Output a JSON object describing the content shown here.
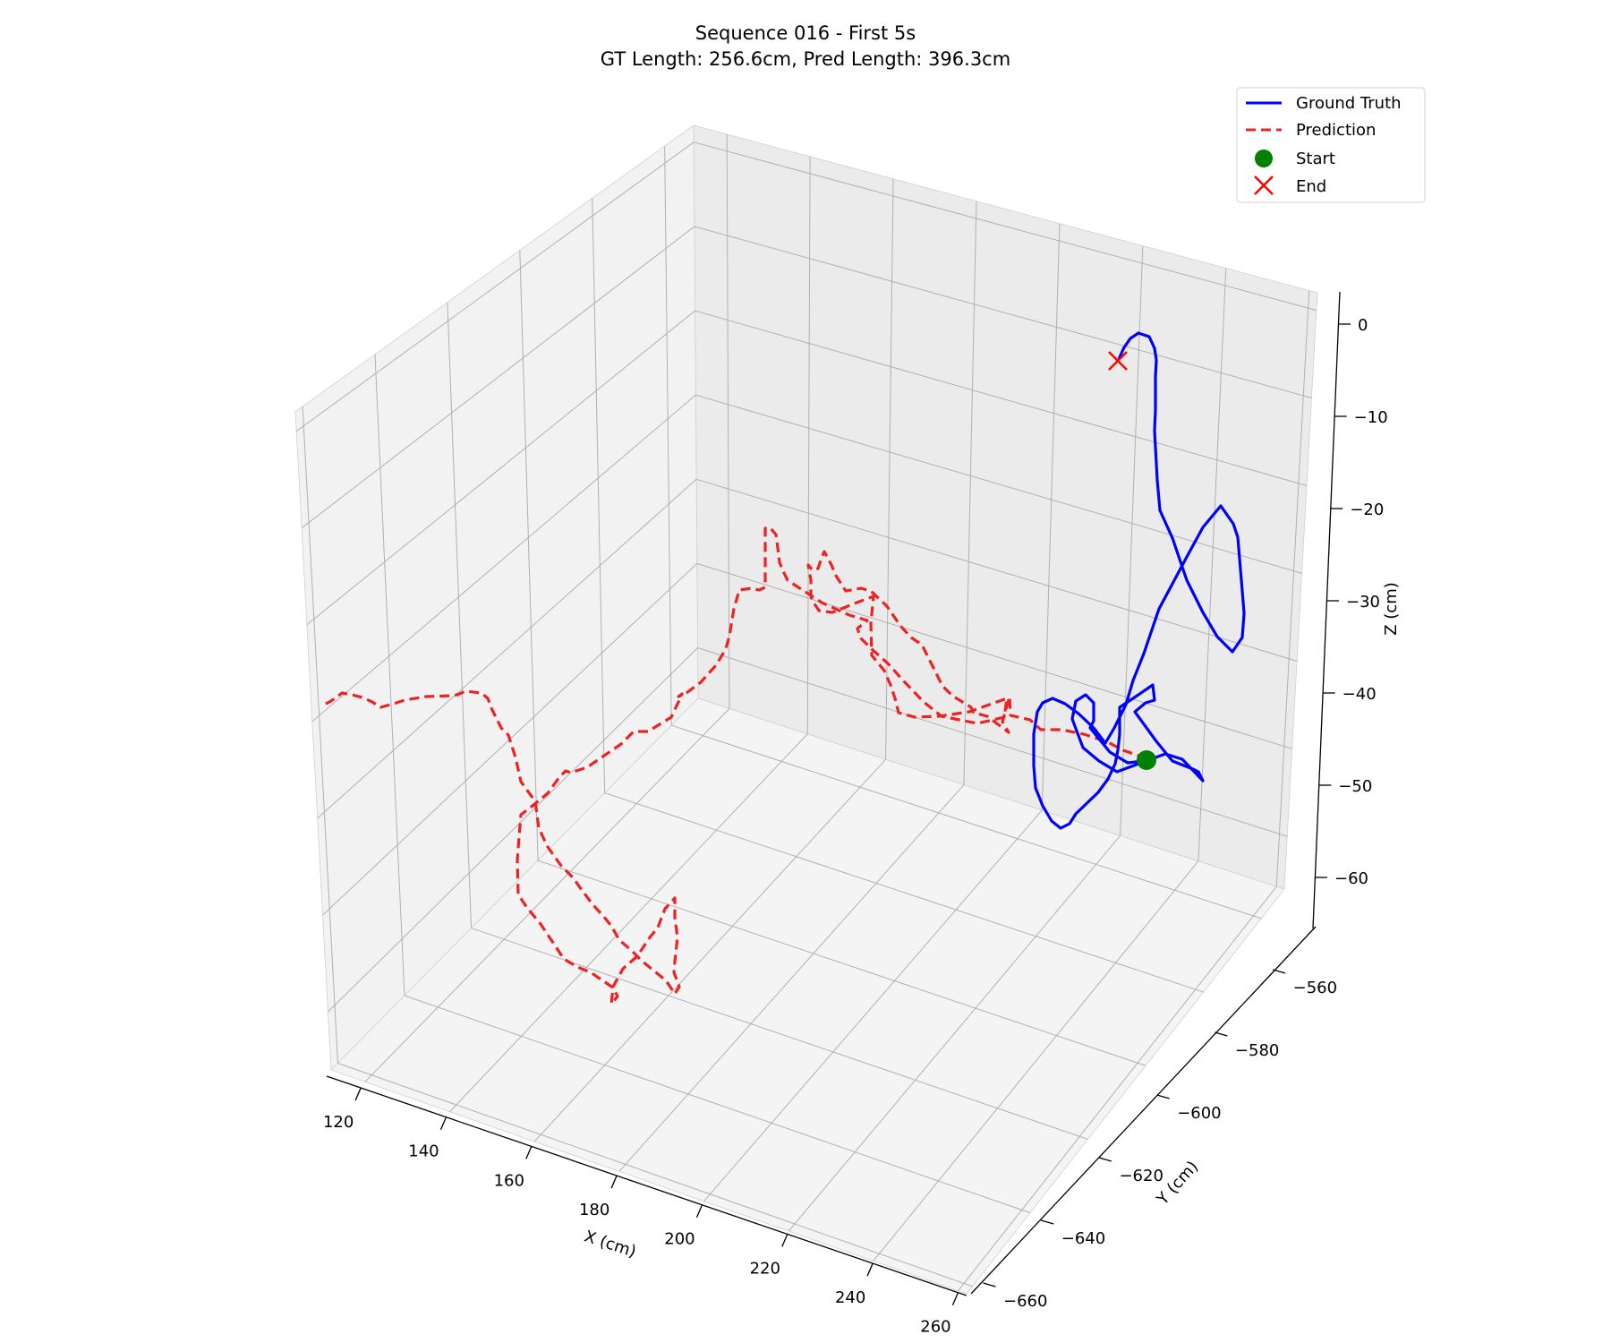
{
  "chart_data": {
    "type": "line",
    "projection": "3d",
    "title": "Sequence 016 - First 5s",
    "subtitle": "GT Length: 256.6cm, Pred Length: 396.3cm",
    "xlabel": "X (cm)",
    "ylabel": "Y (cm)",
    "zlabel": "Z (cm)",
    "xlim": [
      112,
      262
    ],
    "ylim": [
      -662,
      -552
    ],
    "zlim": [
      -66,
      2
    ],
    "x_ticks": [
      120,
      140,
      160,
      180,
      200,
      220,
      240,
      260
    ],
    "y_ticks": [
      -560,
      -580,
      -600,
      -620,
      -640,
      -660
    ],
    "z_ticks": [
      0,
      -10,
      -20,
      -30,
      -40,
      -50,
      -60
    ],
    "grid": true,
    "legend_position": "top-right",
    "series": [
      {
        "name": "Ground Truth",
        "style": "solid",
        "color": "#0000ff",
        "marks_2d": [
          [
            1277,
            850
          ],
          [
            1260,
            852
          ],
          [
            1240,
            840
          ],
          [
            1218,
            813
          ],
          [
            1222,
            805
          ],
          [
            1222,
            785
          ],
          [
            1213,
            776
          ],
          [
            1202,
            783
          ],
          [
            1198,
            803
          ],
          [
            1210,
            835
          ],
          [
            1228,
            850
          ],
          [
            1248,
            862
          ],
          [
            1302,
            842
          ],
          [
            1321,
            848
          ],
          [
            1344,
            872
          ],
          [
            1339,
            862
          ],
          [
            1333,
            859
          ],
          [
            1310,
            850
          ],
          [
            1292,
            828
          ],
          [
            1268,
            795
          ],
          [
            1280,
            785
          ],
          [
            1290,
            782
          ],
          [
            1288,
            765
          ],
          [
            1266,
            780
          ],
          [
            1251,
            790
          ],
          [
            1251,
            820
          ],
          [
            1249,
            838
          ],
          [
            1246,
            853
          ],
          [
            1238,
            870
          ],
          [
            1227,
            885
          ],
          [
            1202,
            909
          ],
          [
            1195,
            920
          ],
          [
            1185,
            925
          ],
          [
            1175,
            917
          ],
          [
            1165,
            900
          ],
          [
            1157,
            880
          ],
          [
            1155,
            855
          ],
          [
            1155,
            820
          ],
          [
            1159,
            795
          ],
          [
            1165,
            785
          ],
          [
            1176,
            780
          ],
          [
            1190,
            786
          ],
          [
            1205,
            797
          ],
          [
            1222,
            813
          ],
          [
            1235,
            830
          ],
          [
            1245,
            813
          ],
          [
            1258,
            787
          ],
          [
            1266,
            760
          ],
          [
            1278,
            730
          ],
          [
            1295,
            680
          ],
          [
            1310,
            652
          ],
          [
            1326,
            622
          ],
          [
            1344,
            589
          ],
          [
            1364,
            565
          ],
          [
            1378,
            585
          ],
          [
            1383,
            600
          ],
          [
            1388,
            660
          ],
          [
            1390,
            685
          ],
          [
            1388,
            712
          ],
          [
            1377,
            728
          ],
          [
            1360,
            711
          ],
          [
            1344,
            684
          ],
          [
            1326,
            648
          ],
          [
            1310,
            601
          ],
          [
            1296,
            570
          ],
          [
            1293,
            536
          ],
          [
            1290,
            481
          ],
          [
            1291,
            458
          ],
          [
            1291,
            421
          ],
          [
            1292,
            402
          ],
          [
            1290,
            389
          ],
          [
            1284,
            376
          ],
          [
            1272,
            372
          ],
          [
            1263,
            378
          ],
          [
            1256,
            388
          ],
          [
            1250,
            401
          ]
        ]
      },
      {
        "name": "Prediction",
        "style": "dashed",
        "color": "#ee2222",
        "marks_2d": [
          [
            1281,
            847
          ],
          [
            1255,
            838
          ],
          [
            1238,
            829
          ],
          [
            1211,
            820
          ],
          [
            1186,
            815
          ],
          [
            1163,
            815
          ],
          [
            1151,
            804
          ],
          [
            1129,
            799
          ],
          [
            1128,
            778
          ],
          [
            1120,
            806
          ],
          [
            1127,
            818
          ],
          [
            1103,
            800
          ],
          [
            1088,
            796
          ],
          [
            1085,
            790
          ],
          [
            1064,
            777
          ],
          [
            1053,
            766
          ],
          [
            1040,
            740
          ],
          [
            1030,
            720
          ],
          [
            1018,
            712
          ],
          [
            1006,
            699
          ],
          [
            991,
            677
          ],
          [
            973,
            660
          ],
          [
            962,
            657
          ],
          [
            945,
            660
          ],
          [
            934,
            643
          ],
          [
            929,
            631
          ],
          [
            921,
            616
          ],
          [
            918,
            623
          ],
          [
            914,
            635
          ],
          [
            908,
            637
          ],
          [
            903,
            631
          ],
          [
            906,
            648
          ],
          [
            906,
            664
          ],
          [
            907,
            670
          ],
          [
            915,
            682
          ],
          [
            930,
            684
          ],
          [
            960,
            672
          ],
          [
            976,
            666
          ],
          [
            973,
            696
          ],
          [
            974,
            732
          ],
          [
            988,
            749
          ],
          [
            995,
            765
          ],
          [
            1000,
            780
          ],
          [
            1004,
            796
          ],
          [
            1022,
            801
          ],
          [
            1049,
            800
          ],
          [
            1083,
            795
          ],
          [
            1125,
            780
          ],
          [
            1122,
            801
          ],
          [
            1092,
            808
          ],
          [
            1052,
            800
          ],
          [
            1032,
            784
          ],
          [
            1010,
            761
          ],
          [
            992,
            741
          ],
          [
            974,
            725
          ],
          [
            962,
            713
          ],
          [
            958,
            702
          ],
          [
            969,
            693
          ],
          [
            949,
            687
          ],
          [
            918,
            673
          ],
          [
            903,
            663
          ],
          [
            892,
            656
          ],
          [
            880,
            648
          ],
          [
            875,
            638
          ],
          [
            871,
            628
          ],
          [
            869,
            612
          ],
          [
            867,
            597
          ],
          [
            860,
            589
          ],
          [
            855,
            590
          ],
          [
            855,
            627
          ],
          [
            855,
            656
          ],
          [
            848,
            659
          ],
          [
            840,
            657
          ],
          [
            826,
            659
          ],
          [
            820,
            680
          ],
          [
            815,
            710
          ],
          [
            812,
            721
          ],
          [
            809,
            728
          ],
          [
            800,
            743
          ],
          [
            783,
            762
          ],
          [
            767,
            774
          ],
          [
            758,
            778
          ],
          [
            762,
            775
          ],
          [
            760,
            780
          ],
          [
            750,
            801
          ],
          [
            724,
            817
          ],
          [
            708,
            817
          ],
          [
            694,
            831
          ],
          [
            656,
            857
          ],
          [
            638,
            863
          ],
          [
            632,
            861
          ],
          [
            625,
            868
          ],
          [
            612,
            886
          ],
          [
            595,
            900
          ],
          [
            582,
            910
          ],
          [
            580,
            934
          ],
          [
            578,
            961
          ],
          [
            579,
            999
          ],
          [
            589,
            1014
          ],
          [
            604,
            1032
          ],
          [
            616,
            1050
          ],
          [
            630,
            1071
          ],
          [
            645,
            1080
          ],
          [
            660,
            1086
          ],
          [
            673,
            1095
          ],
          [
            685,
            1103
          ],
          [
            690,
            1113
          ],
          [
            683,
            1121
          ],
          [
            685,
            1102
          ],
          [
            696,
            1082
          ],
          [
            712,
            1068
          ],
          [
            726,
            1047
          ],
          [
            735,
            1036
          ],
          [
            743,
            1015
          ],
          [
            754,
            1003
          ],
          [
            754,
            1025
          ],
          [
            757,
            1047
          ],
          [
            754,
            1074
          ],
          [
            753,
            1086
          ],
          [
            759,
            1102
          ],
          [
            754,
            1110
          ],
          [
            744,
            1095
          ],
          [
            729,
            1083
          ],
          [
            717,
            1073
          ],
          [
            705,
            1061
          ],
          [
            692,
            1050
          ],
          [
            683,
            1034
          ],
          [
            674,
            1023
          ],
          [
            662,
            1010
          ],
          [
            650,
            994
          ],
          [
            640,
            980
          ],
          [
            627,
            967
          ],
          [
            612,
            946
          ],
          [
            602,
            925
          ],
          [
            598,
            895
          ],
          [
            582,
            873
          ],
          [
            576,
            846
          ],
          [
            568,
            821
          ],
          [
            560,
            813
          ],
          [
            550,
            793
          ],
          [
            545,
            780
          ],
          [
            538,
            774
          ],
          [
            520,
            772
          ],
          [
            511,
            776
          ],
          [
            505,
            777
          ],
          [
            476,
            778
          ],
          [
            452,
            782
          ],
          [
            440,
            786
          ],
          [
            425,
            790
          ],
          [
            416,
            784
          ],
          [
            405,
            779
          ],
          [
            393,
            776
          ],
          [
            382,
            774
          ],
          [
            376,
            779
          ],
          [
            368,
            784
          ],
          [
            360,
            788
          ]
        ]
      }
    ],
    "markers": [
      {
        "name": "Start",
        "shape": "circle",
        "color": "#008000",
        "marks_2d": [
          1281,
          849
        ]
      },
      {
        "name": "End",
        "shape": "x",
        "color": "#ff0000",
        "marks_2d": [
          1249,
          403
        ]
      }
    ]
  }
}
